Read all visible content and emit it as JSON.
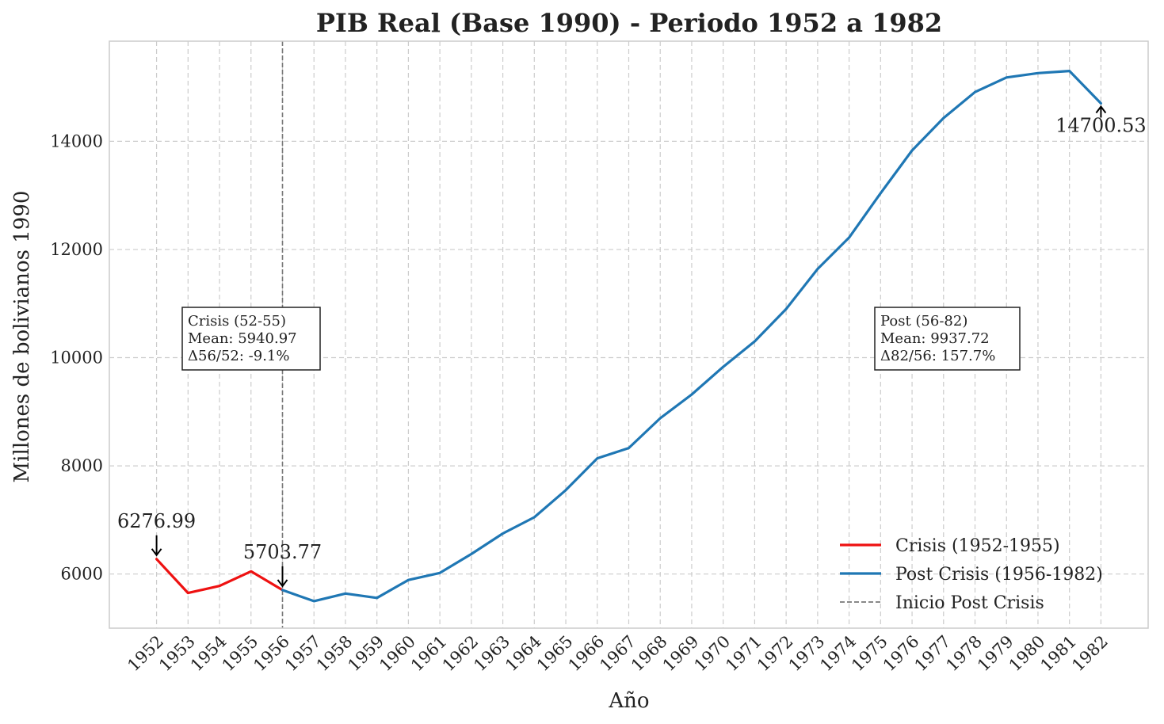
{
  "chart_data": {
    "type": "line",
    "title": "PIB Real (Base 1990) - Periodo 1952 a 1982",
    "xlabel": "Año",
    "ylabel": "Millones de bolivianos 1990",
    "ylim": [
      5000,
      15850
    ],
    "xlim": [
      1950.5,
      1983.5
    ],
    "yticks": [
      6000,
      8000,
      10000,
      12000,
      14000
    ],
    "xticks": [
      "1952",
      "1953",
      "1954",
      "1955",
      "1956",
      "1957",
      "1958",
      "1959",
      "1960",
      "1961",
      "1962",
      "1963",
      "1964",
      "1965",
      "1966",
      "1967",
      "1968",
      "1969",
      "1970",
      "1971",
      "1972",
      "1973",
      "1974",
      "1975",
      "1976",
      "1977",
      "1978",
      "1979",
      "1980",
      "1981",
      "1982"
    ],
    "grid": true,
    "legend_position": "lower-right",
    "series": [
      {
        "name": "Crisis (1952-1955)",
        "color": "#ee1111",
        "x": [
          1952,
          1953,
          1954,
          1955,
          1956
        ],
        "y": [
          6276.99,
          5650,
          5780,
          6050,
          5703.77
        ]
      },
      {
        "name": "Post Crisis (1956-1982)",
        "color": "#1f77b4",
        "x": [
          1956,
          1957,
          1958,
          1959,
          1960,
          1961,
          1962,
          1963,
          1964,
          1965,
          1966,
          1967,
          1968,
          1969,
          1970,
          1971,
          1972,
          1973,
          1974,
          1975,
          1976,
          1977,
          1978,
          1979,
          1980,
          1981,
          1982
        ],
        "y": [
          5703.77,
          5500,
          5640,
          5560,
          5890,
          6020,
          6370,
          6750,
          7050,
          7550,
          8140,
          8330,
          8880,
          9320,
          9830,
          10300,
          10900,
          11640,
          12220,
          13040,
          13830,
          14430,
          14910,
          15180,
          15260,
          15300,
          14700.53
        ]
      }
    ],
    "vline": {
      "x": 1956,
      "label": "Inicio Post Crisis",
      "color": "#777777"
    },
    "annotations": [
      {
        "x": 1952,
        "y": 6276.99,
        "text": "6276.99"
      },
      {
        "x": 1956,
        "y": 5703.77,
        "text": "5703.77"
      },
      {
        "x": 1982,
        "y": 14700.53,
        "text": "14700.53"
      }
    ],
    "text_boxes": [
      {
        "lines": [
          "Crisis (52-55)",
          "Mean: 5940.97",
          "Δ56/52: -9.1%"
        ]
      },
      {
        "lines": [
          "Post (56-82)",
          "Mean: 9937.72",
          "Δ82/56: 157.7%"
        ]
      }
    ]
  }
}
